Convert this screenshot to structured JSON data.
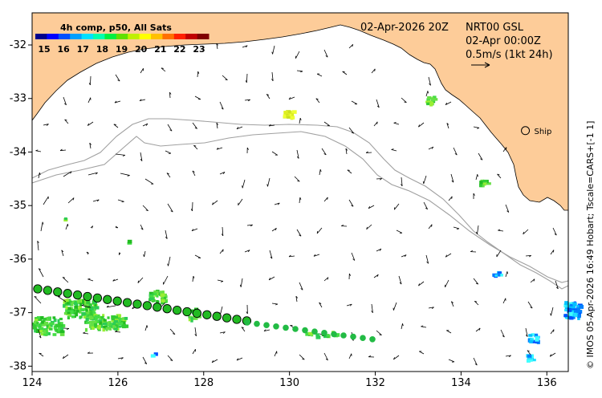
{
  "header": {
    "date": "02-Apr-2026 20Z",
    "product": "NRT00 GSL",
    "current_time": "02-Apr 00:00Z",
    "arrow_scale": "0.5m/s (1kt 24h)"
  },
  "colorbar": {
    "title": "4h comp, p50, All Sats",
    "ticks": [
      "15",
      "16",
      "17",
      "18",
      "19",
      "20",
      "21",
      "22",
      "23"
    ],
    "colors": [
      "#00008c",
      "#0000ff",
      "#0050ff",
      "#00a0ff",
      "#00e0ff",
      "#00ffb0",
      "#00f040",
      "#60e000",
      "#c0f000",
      "#ffff00",
      "#ffc000",
      "#ff7000",
      "#ff2000",
      "#c00000",
      "#800000"
    ]
  },
  "axes": {
    "x_ticks": [
      "124",
      "126",
      "128",
      "130",
      "132",
      "134",
      "136"
    ],
    "y_ticks": [
      "-32",
      "-33",
      "-34",
      "-35",
      "-36",
      "-37",
      "-38"
    ],
    "lon_range": [
      124,
      136.5
    ],
    "lat_range": [
      -38.1,
      -31.4
    ]
  },
  "ship": {
    "label": "Ship",
    "lon": 135.5,
    "lat": -33.6
  },
  "side_text": "© IMOS 05-Apr-2026 16:49 Hobart; Tscale=CARS+[-1 1]",
  "colors": {
    "land": "#fdcc99",
    "coast": "#000000",
    "bathy": "#a0a0a0",
    "drifter_circle": "#22bb22",
    "drifter_dot": "#22bb44",
    "sst_green": "#33cc33",
    "sst_cyan": "#00c0ff"
  }
}
